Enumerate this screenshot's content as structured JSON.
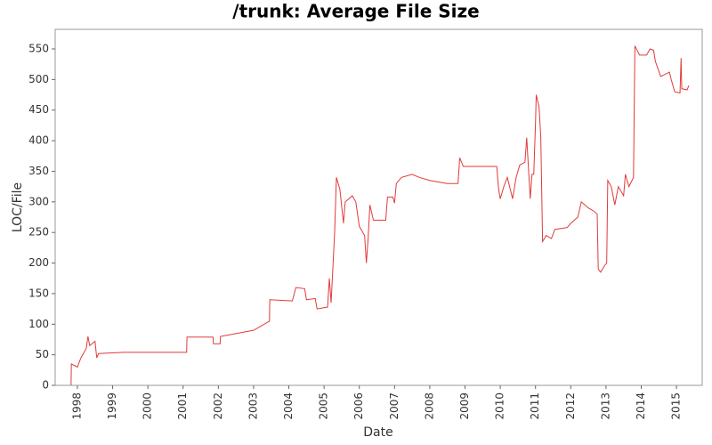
{
  "chart_data": {
    "type": "line",
    "title": "/trunk: Average File Size",
    "x_label": "Date",
    "y_label": "LOC/File",
    "xlim": [
      1997.37,
      2015.73
    ],
    "xticks": [
      1998,
      1999,
      2000,
      2001,
      2002,
      2003,
      2004,
      2005,
      2006,
      2007,
      2008,
      2009,
      2010,
      2011,
      2012,
      2013,
      2014,
      2015
    ],
    "ylim": [
      0,
      582
    ],
    "yticks": [
      0,
      50,
      100,
      150,
      200,
      250,
      300,
      350,
      400,
      450,
      500,
      550
    ],
    "grid": false,
    "series": [
      {
        "name": "LOC/File",
        "color": "#e03a3a",
        "x": [
          1997.82,
          1997.83,
          1998.0,
          1998.1,
          1998.25,
          1998.3,
          1998.35,
          1998.5,
          1998.55,
          1998.6,
          1999.3,
          2001.1,
          2001.11,
          2001.85,
          2001.86,
          2002.05,
          2002.06,
          2003.0,
          2003.3,
          2003.45,
          2003.46,
          2004.1,
          2004.2,
          2004.45,
          2004.5,
          2004.75,
          2004.8,
          2005.1,
          2005.15,
          2005.2,
          2005.3,
          2005.35,
          2005.45,
          2005.55,
          2005.6,
          2005.8,
          2005.9,
          2006.0,
          2006.15,
          2006.2,
          2006.25,
          2006.3,
          2006.4,
          2006.75,
          2006.8,
          2006.95,
          2007.0,
          2007.05,
          2007.2,
          2007.5,
          2007.7,
          2008.0,
          2008.3,
          2008.5,
          2008.8,
          2008.85,
          2008.95,
          2009.9,
          2009.95,
          2010.0,
          2010.1,
          2010.2,
          2010.35,
          2010.45,
          2010.55,
          2010.7,
          2010.75,
          2010.85,
          2010.9,
          2010.95,
          2011.0,
          2011.02,
          2011.1,
          2011.15,
          2011.2,
          2011.3,
          2011.45,
          2011.55,
          2011.9,
          2012.0,
          2012.2,
          2012.3,
          2012.5,
          2012.65,
          2012.75,
          2012.78,
          2012.85,
          2012.95,
          2013.02,
          2013.05,
          2013.15,
          2013.25,
          2013.35,
          2013.5,
          2013.55,
          2013.65,
          2013.78,
          2013.82,
          2013.95,
          2014.15,
          2014.25,
          2014.35,
          2014.4,
          2014.55,
          2014.8,
          2014.85,
          2014.95,
          2015.1,
          2015.13,
          2015.15,
          2015.3,
          2015.35
        ],
        "values": [
          0,
          35,
          30,
          45,
          60,
          80,
          65,
          72,
          45,
          52,
          54,
          54,
          79,
          79,
          68,
          68,
          80,
          90,
          100,
          105,
          140,
          138,
          160,
          158,
          140,
          142,
          125,
          128,
          175,
          135,
          250,
          340,
          320,
          265,
          300,
          310,
          300,
          260,
          245,
          200,
          240,
          295,
          270,
          270,
          308,
          308,
          298,
          330,
          340,
          345,
          340,
          335,
          332,
          330,
          330,
          372,
          358,
          358,
          322,
          305,
          325,
          340,
          305,
          340,
          360,
          365,
          405,
          305,
          345,
          345,
          430,
          475,
          455,
          405,
          235,
          245,
          240,
          255,
          258,
          265,
          275,
          300,
          290,
          285,
          280,
          190,
          185,
          195,
          200,
          335,
          325,
          295,
          325,
          310,
          345,
          325,
          340,
          555,
          540,
          540,
          550,
          548,
          530,
          505,
          512,
          500,
          480,
          478,
          535,
          485,
          483,
          490
        ]
      }
    ]
  }
}
